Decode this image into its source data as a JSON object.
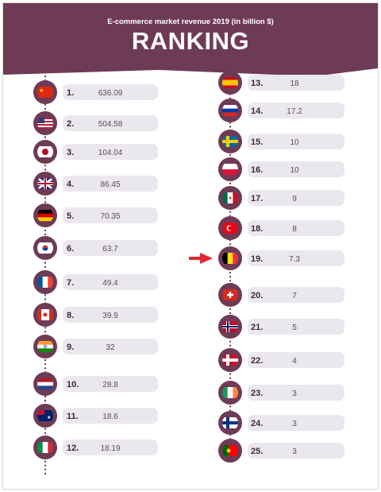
{
  "header": {
    "subtitle": "E-commerce market revenue 2019 (in billion $)",
    "title": "RANKING"
  },
  "colors": {
    "header": "#6e3b57",
    "circle": "#6e3b57",
    "pill": "#ebe7ef",
    "dots": "#4a3a45",
    "arrow": "#e3262f"
  },
  "highlight": {
    "rank": 19,
    "icon": "red-arrow-icon"
  },
  "chart_data": {
    "type": "table",
    "columns": [
      {
        "rank_labels": [
          "1.",
          "2.",
          "3.",
          "4.",
          "5.",
          "6.",
          "7.",
          "8.",
          "9.",
          "10.",
          "11.",
          "12."
        ],
        "values": [
          636.09,
          504.58,
          104.04,
          86.45,
          70.35,
          63.7,
          49.4,
          39.9,
          32,
          28.8,
          18.6,
          18.19
        ],
        "flags": [
          "china",
          "usa",
          "japan",
          "uk",
          "germany",
          "south-korea",
          "france",
          "canada",
          "india",
          "netherlands",
          "australia",
          "italy"
        ]
      },
      {
        "rank_labels": [
          "13.",
          "14.",
          "15.",
          "16.",
          "17.",
          "18.",
          "19.",
          "20.",
          "21.",
          "22.",
          "23.",
          "24.",
          "25."
        ],
        "values": [
          18,
          17.2,
          10,
          10,
          9,
          8,
          7.3,
          7,
          5,
          4,
          3,
          3,
          3
        ],
        "flags": [
          "spain",
          "russia",
          "sweden",
          "poland",
          "mexico",
          "turkey",
          "belgium",
          "switzerland",
          "norway",
          "denmark",
          "ireland",
          "finland",
          "portugal"
        ]
      }
    ]
  }
}
